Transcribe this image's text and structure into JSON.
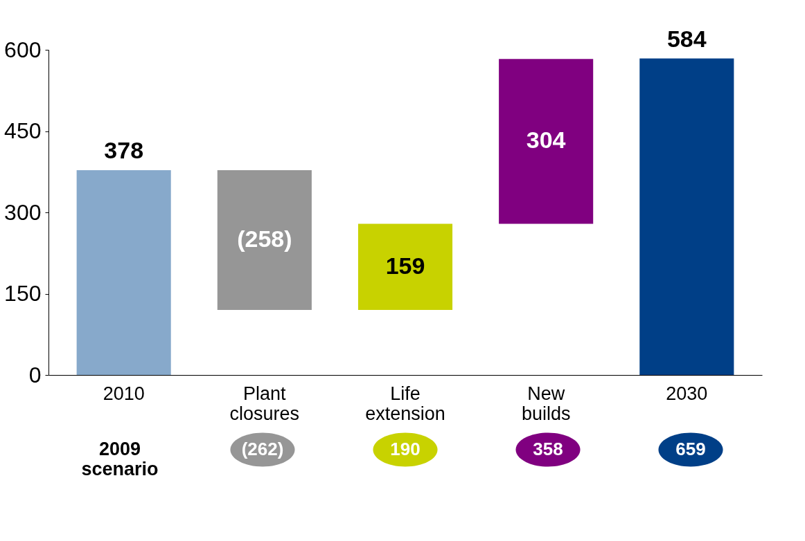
{
  "chart_data": {
    "type": "bar",
    "categories": [
      "2010",
      "Plant closures",
      "Life extension",
      "New builds",
      "2030"
    ],
    "values": [
      378,
      -258,
      159,
      304,
      584
    ],
    "base": [
      0,
      378,
      120,
      279,
      0
    ],
    "value_labels": [
      "378",
      "(258)",
      "159",
      "304",
      "584"
    ],
    "colors": [
      "#87a9cb",
      "#969696",
      "#c8d200",
      "#800080",
      "#003f87"
    ],
    "ylim": [
      0,
      600
    ],
    "yticks": [
      0,
      150,
      300,
      450,
      600
    ],
    "grid": false,
    "annotations": [
      "2009 scenario",
      "(262)",
      "190",
      "358",
      "659"
    ]
  }
}
